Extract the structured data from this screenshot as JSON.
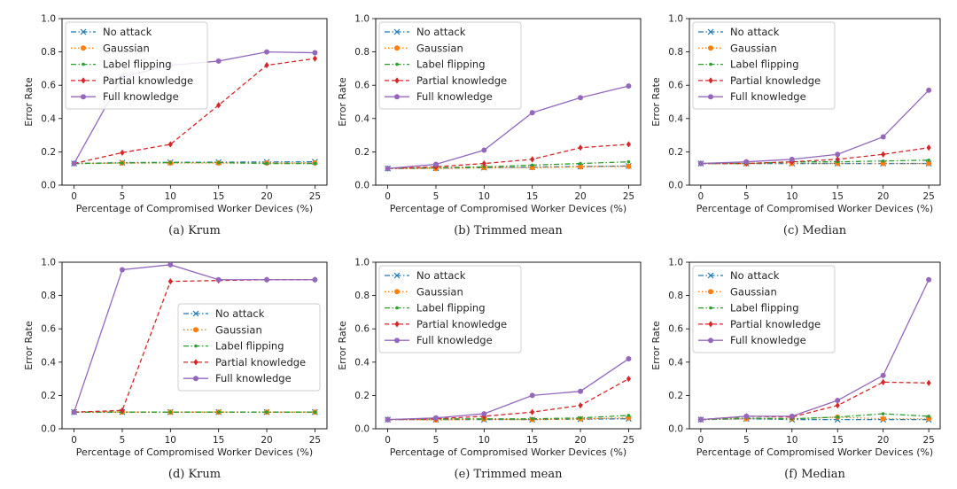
{
  "figure": {
    "x_ticks": [
      "0",
      "5",
      "10",
      "15",
      "20",
      "25"
    ],
    "y_ticks": [
      "0.0",
      "0.2",
      "0.4",
      "0.6",
      "0.8",
      "1.0"
    ]
  },
  "legend_entries": [
    {
      "name": "No attack",
      "color": "#1f77b4",
      "marker": "x",
      "dash": "dashdot"
    },
    {
      "name": "Gaussian",
      "color": "#ff7f0e",
      "marker": "o",
      "dash": "dotted"
    },
    {
      "name": "Label flipping",
      "color": "#2ca02c",
      "marker": ".",
      "dash": "dashdot"
    },
    {
      "name": "Partial knowledge",
      "color": "#d62728",
      "marker": "d",
      "dash": "dashed"
    },
    {
      "name": "Full knowledge",
      "color": "#9467bd",
      "marker": "o",
      "dash": "solid"
    }
  ],
  "chart_data": [
    {
      "type": "line",
      "caption": "(a) Krum",
      "xlabel": "Percentage of Compromised Worker Devices (%)",
      "ylabel": "Error Rate",
      "x": [
        0,
        5,
        10,
        15,
        20,
        25
      ],
      "xlim": [
        -1.25,
        26.25
      ],
      "ylim": [
        0,
        1
      ],
      "legend": "top-left",
      "series": [
        {
          "name": "No attack",
          "values": [
            0.13,
            0.135,
            0.137,
            0.138,
            0.139,
            0.14
          ]
        },
        {
          "name": "Gaussian",
          "values": [
            0.13,
            0.133,
            0.133,
            0.133,
            0.133,
            0.133
          ]
        },
        {
          "name": "Label flipping",
          "values": [
            0.13,
            0.133,
            0.135,
            0.135,
            0.13,
            0.13
          ]
        },
        {
          "name": "Partial knowledge",
          "values": [
            0.13,
            0.195,
            0.245,
            0.48,
            0.72,
            0.76
          ]
        },
        {
          "name": "Full knowledge",
          "values": [
            0.13,
            0.65,
            0.72,
            0.745,
            0.8,
            0.795
          ]
        }
      ]
    },
    {
      "type": "line",
      "caption": "(b) Trimmed mean",
      "xlabel": "Percentage of Compromised Worker Devices (%)",
      "ylabel": "Error Rate",
      "x": [
        0,
        5,
        10,
        15,
        20,
        25
      ],
      "xlim": [
        -1.25,
        26.25
      ],
      "ylim": [
        0,
        1
      ],
      "legend": "top-left",
      "series": [
        {
          "name": "No attack",
          "values": [
            0.1,
            0.102,
            0.105,
            0.108,
            0.112,
            0.115
          ]
        },
        {
          "name": "Gaussian",
          "values": [
            0.1,
            0.1,
            0.105,
            0.105,
            0.11,
            0.113
          ]
        },
        {
          "name": "Label flipping",
          "values": [
            0.1,
            0.105,
            0.11,
            0.12,
            0.13,
            0.14
          ]
        },
        {
          "name": "Partial knowledge",
          "values": [
            0.1,
            0.11,
            0.13,
            0.155,
            0.225,
            0.245
          ]
        },
        {
          "name": "Full knowledge",
          "values": [
            0.1,
            0.125,
            0.21,
            0.435,
            0.525,
            0.595
          ]
        }
      ]
    },
    {
      "type": "line",
      "caption": "(c) Median",
      "xlabel": "Percentage of Compromised Worker Devices (%)",
      "ylabel": "Error Rate",
      "x": [
        0,
        5,
        10,
        15,
        20,
        25
      ],
      "xlim": [
        -1.25,
        26.25
      ],
      "ylim": [
        0,
        1
      ],
      "legend": "top-left",
      "series": [
        {
          "name": "No attack",
          "values": [
            0.13,
            0.13,
            0.13,
            0.13,
            0.13,
            0.13
          ]
        },
        {
          "name": "Gaussian",
          "values": [
            0.13,
            0.13,
            0.13,
            0.13,
            0.13,
            0.13
          ]
        },
        {
          "name": "Label flipping",
          "values": [
            0.13,
            0.13,
            0.14,
            0.14,
            0.145,
            0.15
          ]
        },
        {
          "name": "Partial knowledge",
          "values": [
            0.13,
            0.13,
            0.14,
            0.155,
            0.185,
            0.225
          ]
        },
        {
          "name": "Full knowledge",
          "values": [
            0.13,
            0.14,
            0.155,
            0.185,
            0.29,
            0.57
          ]
        }
      ]
    },
    {
      "type": "line",
      "caption": "(d) Krum",
      "xlabel": "Percentage of Compromised Worker Devices (%)",
      "ylabel": "Error Rate",
      "x": [
        0,
        5,
        10,
        15,
        20,
        25
      ],
      "xlim": [
        -1.25,
        26.25
      ],
      "ylim": [
        0,
        1
      ],
      "legend": "center-right",
      "series": [
        {
          "name": "No attack",
          "values": [
            0.1,
            0.1,
            0.1,
            0.1,
            0.1,
            0.1
          ]
        },
        {
          "name": "Gaussian",
          "values": [
            0.1,
            0.1,
            0.1,
            0.1,
            0.1,
            0.1
          ]
        },
        {
          "name": "Label flipping",
          "values": [
            0.1,
            0.1,
            0.1,
            0.1,
            0.1,
            0.1
          ]
        },
        {
          "name": "Partial knowledge",
          "values": [
            0.1,
            0.11,
            0.885,
            0.89,
            0.895,
            0.895
          ]
        },
        {
          "name": "Full knowledge",
          "values": [
            0.1,
            0.955,
            0.985,
            0.895,
            0.895,
            0.895
          ]
        }
      ]
    },
    {
      "type": "line",
      "caption": "(e) Trimmed mean",
      "xlabel": "Percentage of Compromised Worker Devices (%)",
      "ylabel": "Error Rate",
      "x": [
        0,
        5,
        10,
        15,
        20,
        25
      ],
      "xlim": [
        -1.25,
        26.25
      ],
      "ylim": [
        0,
        1
      ],
      "legend": "top-left",
      "series": [
        {
          "name": "No attack",
          "values": [
            0.055,
            0.055,
            0.055,
            0.055,
            0.058,
            0.06
          ]
        },
        {
          "name": "Gaussian",
          "values": [
            0.055,
            0.053,
            0.058,
            0.055,
            0.06,
            0.065
          ]
        },
        {
          "name": "Label flipping",
          "values": [
            0.055,
            0.06,
            0.06,
            0.06,
            0.065,
            0.08
          ]
        },
        {
          "name": "Partial knowledge",
          "values": [
            0.055,
            0.06,
            0.075,
            0.1,
            0.14,
            0.3
          ]
        },
        {
          "name": "Full knowledge",
          "values": [
            0.055,
            0.065,
            0.09,
            0.2,
            0.225,
            0.42
          ]
        }
      ]
    },
    {
      "type": "line",
      "caption": "(f) Median",
      "xlabel": "Percentage of Compromised Worker Devices (%)",
      "ylabel": "Error Rate",
      "x": [
        0,
        5,
        10,
        15,
        20,
        25
      ],
      "xlim": [
        -1.25,
        26.25
      ],
      "ylim": [
        0,
        1
      ],
      "legend": "top-left",
      "series": [
        {
          "name": "No attack",
          "values": [
            0.055,
            0.06,
            0.055,
            0.055,
            0.055,
            0.055
          ]
        },
        {
          "name": "Gaussian",
          "values": [
            0.055,
            0.06,
            0.06,
            0.07,
            0.06,
            0.06
          ]
        },
        {
          "name": "Label flipping",
          "values": [
            0.055,
            0.065,
            0.06,
            0.07,
            0.09,
            0.075
          ]
        },
        {
          "name": "Partial knowledge",
          "values": [
            0.055,
            0.075,
            0.07,
            0.14,
            0.28,
            0.275
          ]
        },
        {
          "name": "Full knowledge",
          "values": [
            0.055,
            0.075,
            0.075,
            0.17,
            0.32,
            0.895
          ]
        }
      ]
    }
  ]
}
